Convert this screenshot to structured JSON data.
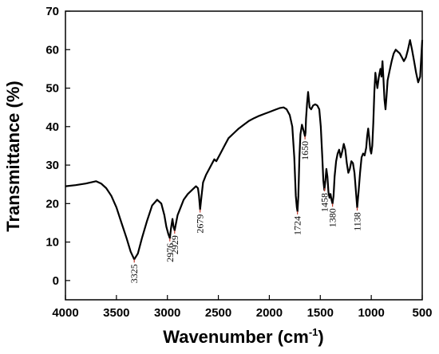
{
  "chart_data": {
    "type": "line",
    "title": "",
    "xlabel": "Wavenumber (cm",
    "xlabel_sup": "-1",
    "xlabel_close": ")",
    "ylabel": "Transmittance (%)",
    "xlim": [
      4000,
      500
    ],
    "ylim": [
      -5,
      70
    ],
    "x_reversed": true,
    "grid": false,
    "line_color": "#000000",
    "marker_color": "#c0392b",
    "xticks": [
      "4000",
      "3500",
      "3000",
      "2500",
      "2000",
      "1500",
      "1000",
      "500"
    ],
    "yticks": [
      "0",
      "10",
      "20",
      "30",
      "40",
      "50",
      "60",
      "70"
    ],
    "series": [
      {
        "x": [
          4000,
          3900,
          3800,
          3700,
          3650,
          3600,
          3550,
          3500,
          3450,
          3400,
          3360,
          3325,
          3290,
          3250,
          3200,
          3150,
          3100,
          3060,
          3030,
          3010,
          2990,
          2976,
          2965,
          2950,
          2940,
          2929,
          2915,
          2900,
          2870,
          2840,
          2800,
          2760,
          2720,
          2700,
          2690,
          2679,
          2665,
          2650,
          2620,
          2590,
          2560,
          2540,
          2520,
          2480,
          2440,
          2400,
          2340,
          2300,
          2250,
          2200,
          2150,
          2100,
          2050,
          2000,
          1950,
          1900,
          1860,
          1830,
          1800,
          1775,
          1755,
          1740,
          1730,
          1724,
          1715,
          1705,
          1695,
          1680,
          1670,
          1660,
          1650,
          1645,
          1640,
          1630,
          1620,
          1605,
          1590,
          1570,
          1550,
          1530,
          1510,
          1495,
          1480,
          1470,
          1460,
          1458,
          1450,
          1440,
          1430,
          1420,
          1410,
          1400,
          1390,
          1380,
          1370,
          1360,
          1345,
          1330,
          1315,
          1300,
          1285,
          1270,
          1255,
          1240,
          1225,
          1210,
          1195,
          1180,
          1165,
          1150,
          1138,
          1125,
          1110,
          1095,
          1080,
          1065,
          1050,
          1040,
          1030,
          1020,
          1010,
          1000,
          990,
          980,
          970,
          960,
          950,
          940,
          925,
          910,
          900,
          890,
          880,
          870,
          860,
          850,
          840,
          820,
          800,
          780,
          760,
          740,
          720,
          700,
          680,
          660,
          640,
          620,
          600,
          580,
          560,
          540,
          520,
          500
        ],
        "y": [
          24.5,
          24.8,
          25.2,
          25.8,
          25.2,
          24.0,
          22.0,
          19.0,
          15.0,
          11.0,
          7.5,
          5.5,
          7.0,
          11.0,
          15.5,
          19.5,
          21.0,
          20.0,
          17.0,
          14.0,
          12.0,
          11.0,
          13.5,
          16.0,
          14.0,
          13.0,
          15.0,
          17.0,
          19.0,
          21.0,
          22.5,
          23.5,
          24.5,
          24.0,
          22.0,
          18.5,
          22.0,
          25.5,
          27.5,
          29.0,
          30.5,
          31.5,
          31.0,
          33.0,
          35.0,
          37.0,
          38.5,
          39.5,
          40.5,
          41.5,
          42.2,
          42.8,
          43.3,
          43.8,
          44.3,
          44.8,
          45.0,
          44.5,
          43.0,
          40.0,
          32.0,
          22.0,
          19.0,
          18.0,
          22.0,
          32.0,
          38.0,
          40.5,
          39.5,
          38.5,
          37.5,
          38.5,
          42.0,
          46.0,
          49.0,
          45.0,
          44.5,
          45.5,
          45.8,
          45.5,
          44.5,
          40.0,
          32.0,
          26.0,
          23.5,
          24.0,
          26.0,
          29.0,
          27.0,
          23.0,
          21.5,
          22.5,
          21.0,
          20.0,
          22.0,
          27.0,
          31.0,
          33.0,
          34.0,
          32.0,
          33.5,
          35.5,
          34.0,
          30.5,
          28.0,
          29.0,
          31.0,
          30.5,
          28.0,
          23.0,
          19.0,
          23.0,
          28.0,
          32.0,
          33.0,
          32.5,
          34.5,
          37.5,
          39.5,
          37.0,
          34.0,
          33.0,
          35.0,
          41.0,
          49.0,
          54.0,
          52.0,
          50.0,
          53.0,
          55.0,
          53.0,
          57.0,
          52.0,
          47.0,
          44.5,
          48.0,
          52.0,
          54.5,
          57.0,
          59.0,
          60.0,
          59.5,
          59.0,
          58.0,
          57.0,
          58.0,
          60.0,
          62.5,
          60.0,
          57.0,
          54.0,
          51.5,
          53.0,
          62.5
        ]
      }
    ],
    "annotations": [
      {
        "x": 3325,
        "y": 5.5,
        "text": "3325"
      },
      {
        "x": 2976,
        "y": 11.0,
        "text": "2976"
      },
      {
        "x": 2929,
        "y": 13.0,
        "text": "2929"
      },
      {
        "x": 2679,
        "y": 18.5,
        "text": "2679"
      },
      {
        "x": 1724,
        "y": 18.0,
        "text": "1724"
      },
      {
        "x": 1650,
        "y": 37.5,
        "text": "1650"
      },
      {
        "x": 1458,
        "y": 24.0,
        "text": "1458"
      },
      {
        "x": 1380,
        "y": 20.0,
        "text": "1380"
      },
      {
        "x": 1138,
        "y": 19.0,
        "text": "1138"
      }
    ]
  }
}
